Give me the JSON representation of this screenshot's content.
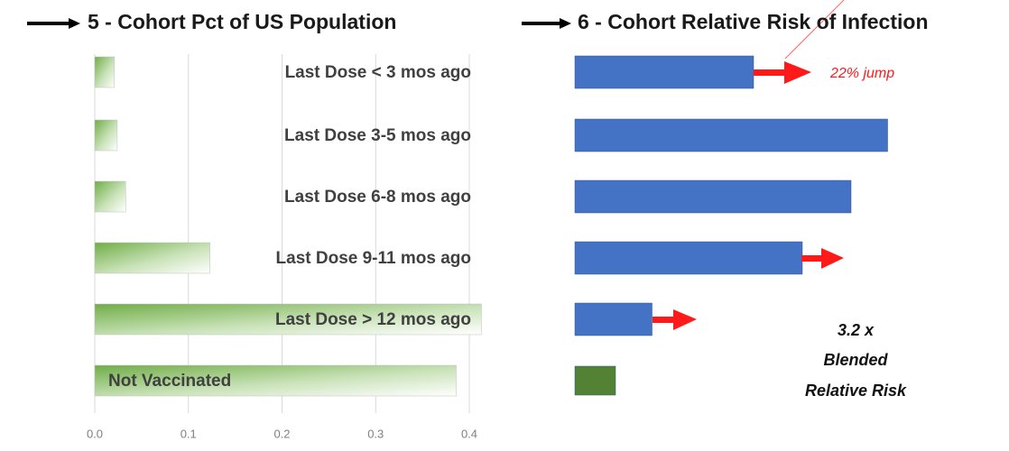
{
  "chart_data": [
    {
      "type": "bar",
      "orientation": "horizontal",
      "title": "5 - Cohort Pct of US Population",
      "categories": [
        "Last Dose < 3 mos ago",
        "Last Dose 3-5 mos ago",
        "Last Dose 6-8 mos ago",
        "Last Dose 9-11 mos ago",
        "Last Dose > 12 mos ago",
        "Not Vaccinated"
      ],
      "values": [
        0.021,
        0.024,
        0.033,
        0.123,
        0.413,
        0.386
      ],
      "color": "#70ad47",
      "xlim": [
        0,
        0.42
      ],
      "xticks": [
        {
          "value": 0,
          "label": "0.0"
        },
        0.1,
        0.2,
        0.3,
        0.4
      ],
      "grid": true
    },
    {
      "type": "bar",
      "orientation": "horizontal",
      "title": "6 - Cohort Relative Risk of Infection",
      "categories": [
        "Last Dose < 3 mos ago",
        "Last Dose 3-5 mos ago",
        "Last Dose 6-8 mos ago",
        "Last Dose 9-11 mos ago",
        "Last Dose > 12 mos ago",
        "Not Vaccinated"
      ],
      "values": [
        4.4,
        7.7,
        6.8,
        5.6,
        1.9,
        1
      ],
      "colors": [
        "#4472c4",
        "#4472c4",
        "#4472c4",
        "#4472c4",
        "#4472c4",
        "#548235"
      ],
      "annotations": [
        "22% jump",
        "3.2 x",
        "Blended",
        "Relative Risk"
      ]
    }
  ]
}
